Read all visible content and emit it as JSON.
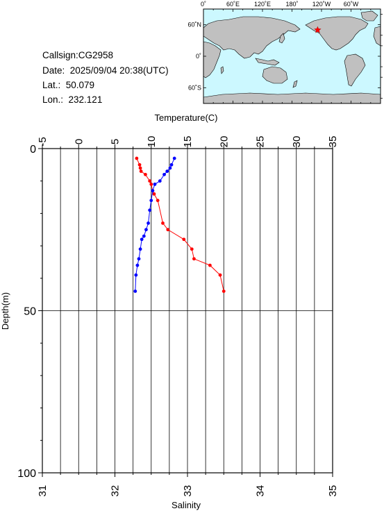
{
  "station": {
    "callsign": "Callsign:CG2958",
    "date": "Date:  2025/09/04 20:38(UTC)",
    "lat": "Lat.:  50.079",
    "lon": "Lon.:  232.121"
  },
  "map": {
    "lon_ticks": [
      "0˚",
      "60˚E",
      "120˚E",
      "180˚",
      "120˚W",
      "60˚W"
    ],
    "lat_ticks": [
      "60˚N",
      "0˚",
      "60˚S"
    ],
    "station_marker": {
      "lon": 232.121,
      "lat": 50.079,
      "shape": "star",
      "color": "#ff0000"
    },
    "ocean_color": "#ccf8ff",
    "land_color": "#c0c0c0"
  },
  "chart_data": {
    "type": "scatter",
    "title": "",
    "top_axis": {
      "label": "Temperature(C)",
      "range": [
        -5,
        35
      ],
      "ticks": [
        "-5",
        "0",
        "5",
        "10",
        "15",
        "20",
        "25",
        "30",
        "35"
      ]
    },
    "bottom_axis": {
      "label": "Salinity",
      "range": [
        31,
        35
      ],
      "ticks": [
        "31",
        "32",
        "33",
        "34",
        "35"
      ]
    },
    "y_axis": {
      "label": "Depth(m)",
      "range": [
        0,
        100
      ],
      "inverted": true,
      "ticks": [
        "0",
        "50",
        "100"
      ]
    },
    "grid": true,
    "series": [
      {
        "variable": "temperature",
        "color": "#ff0000",
        "points": [
          [
            8.0,
            3
          ],
          [
            8.4,
            5
          ],
          [
            8.5,
            6
          ],
          [
            8.6,
            7
          ],
          [
            9.2,
            8
          ],
          [
            9.8,
            10
          ],
          [
            10.0,
            11
          ],
          [
            10.2,
            13
          ],
          [
            10.4,
            14
          ],
          [
            10.9,
            16
          ],
          [
            11.6,
            23
          ],
          [
            12.3,
            25
          ],
          [
            14.5,
            28
          ],
          [
            15.6,
            31
          ],
          [
            15.9,
            34
          ],
          [
            18.1,
            36
          ],
          [
            19.5,
            39
          ],
          [
            20.0,
            44
          ]
        ]
      },
      {
        "variable": "salinity",
        "color": "#0000ff",
        "points": [
          [
            32.82,
            3
          ],
          [
            32.78,
            5
          ],
          [
            32.76,
            6
          ],
          [
            32.72,
            7
          ],
          [
            32.68,
            8
          ],
          [
            32.62,
            10
          ],
          [
            32.55,
            11
          ],
          [
            32.52,
            13
          ],
          [
            32.5,
            16
          ],
          [
            32.48,
            19
          ],
          [
            32.46,
            23
          ],
          [
            32.43,
            25
          ],
          [
            32.4,
            27
          ],
          [
            32.37,
            28
          ],
          [
            32.35,
            31
          ],
          [
            32.33,
            34
          ],
          [
            32.31,
            36
          ],
          [
            32.29,
            39
          ],
          [
            32.28,
            44
          ]
        ]
      }
    ]
  }
}
